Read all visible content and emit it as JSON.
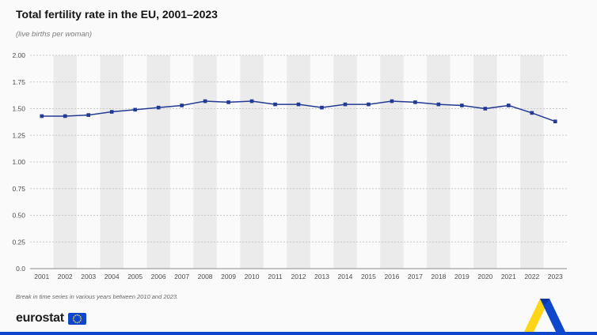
{
  "header": {
    "title": "Total fertility rate in the EU, 2001–2023",
    "subtitle": "(live births per woman)"
  },
  "chart_data": {
    "type": "line",
    "title": "Total fertility rate in the EU, 2001–2023",
    "subtitle": "(live births per woman)",
    "xlabel": "",
    "ylabel": "live births per woman",
    "x": [
      2001,
      2002,
      2003,
      2004,
      2005,
      2006,
      2007,
      2008,
      2009,
      2010,
      2011,
      2012,
      2013,
      2014,
      2015,
      2016,
      2017,
      2018,
      2019,
      2020,
      2021,
      2022,
      2023
    ],
    "series": [
      {
        "name": "Total fertility rate",
        "values": [
          1.43,
          1.43,
          1.44,
          1.47,
          1.49,
          1.51,
          1.53,
          1.57,
          1.56,
          1.57,
          1.54,
          1.54,
          1.51,
          1.54,
          1.54,
          1.57,
          1.56,
          1.54,
          1.53,
          1.5,
          1.53,
          1.46,
          1.38
        ]
      }
    ],
    "ylim": [
      0,
      2.0
    ],
    "yticks": [
      0,
      0.25,
      0.5,
      0.75,
      1.0,
      1.25,
      1.5,
      1.75,
      2.0
    ],
    "ytick_labels": [
      "0.0",
      "0.25",
      "0.50",
      "0.75",
      "1.00",
      "1.25",
      "1.50",
      "1.75",
      "2.00"
    ],
    "grid": "horizontal-dashed",
    "legend": "none",
    "marker": "square",
    "colors": {
      "line": "#223a94",
      "band": "#ebebeb",
      "grid": "#c9c9c9",
      "axis_line": "#8c8c8c",
      "tick_text": "#4d4d4d"
    }
  },
  "footnote": "Break in time series in various years between 2010 and 2023.",
  "footer": {
    "logo_text": "eurostat"
  },
  "brand": {
    "accent_blue": "#0e47cb",
    "accent_yellow": "#ffd617",
    "fold_blue": "#0a36a3"
  },
  "icons": {
    "eu_flag": "eu-flag-icon",
    "ribbon": "ribbon-decoration-icon"
  }
}
